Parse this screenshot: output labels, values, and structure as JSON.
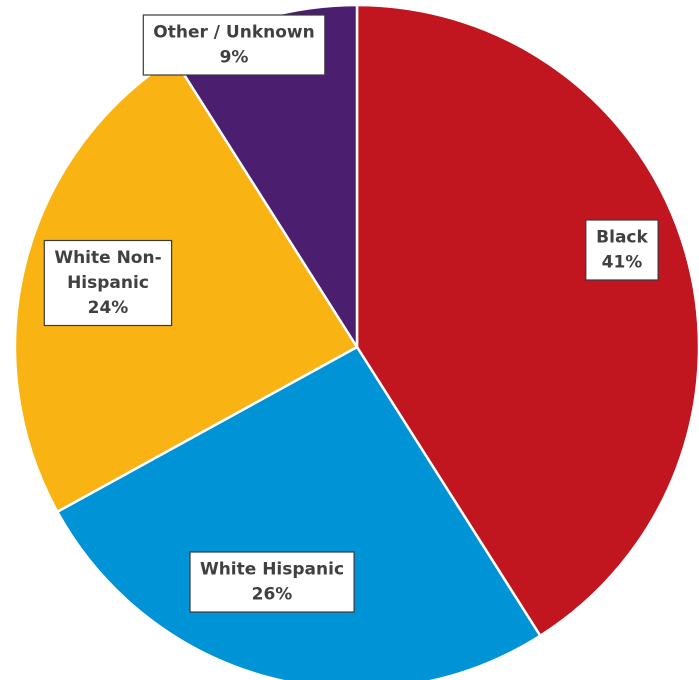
{
  "chart_data": {
    "type": "pie",
    "start_angle_deg": 0,
    "direction": "clockwise",
    "slices": [
      {
        "label": "Black",
        "value": 41,
        "value_label": "41%",
        "color": "#C1161F"
      },
      {
        "label": "White Hispanic",
        "value": 26,
        "value_label": "26%",
        "color": "#0094D6"
      },
      {
        "label": "White Non-Hispanic",
        "value": 24,
        "value_label": "24%",
        "color": "#F9B312"
      },
      {
        "label": "Other / Unknown",
        "value": 9,
        "value_label": "9%",
        "color": "#4B1E6F"
      }
    ],
    "data_labels": [
      {
        "lines": [
          "Black",
          "41%"
        ]
      },
      {
        "lines": [
          "White Hispanic",
          "26%"
        ]
      },
      {
        "lines": [
          "White Non-",
          "Hispanic",
          "24%"
        ]
      },
      {
        "lines": [
          "Other / Unknown",
          "9%"
        ]
      }
    ]
  }
}
